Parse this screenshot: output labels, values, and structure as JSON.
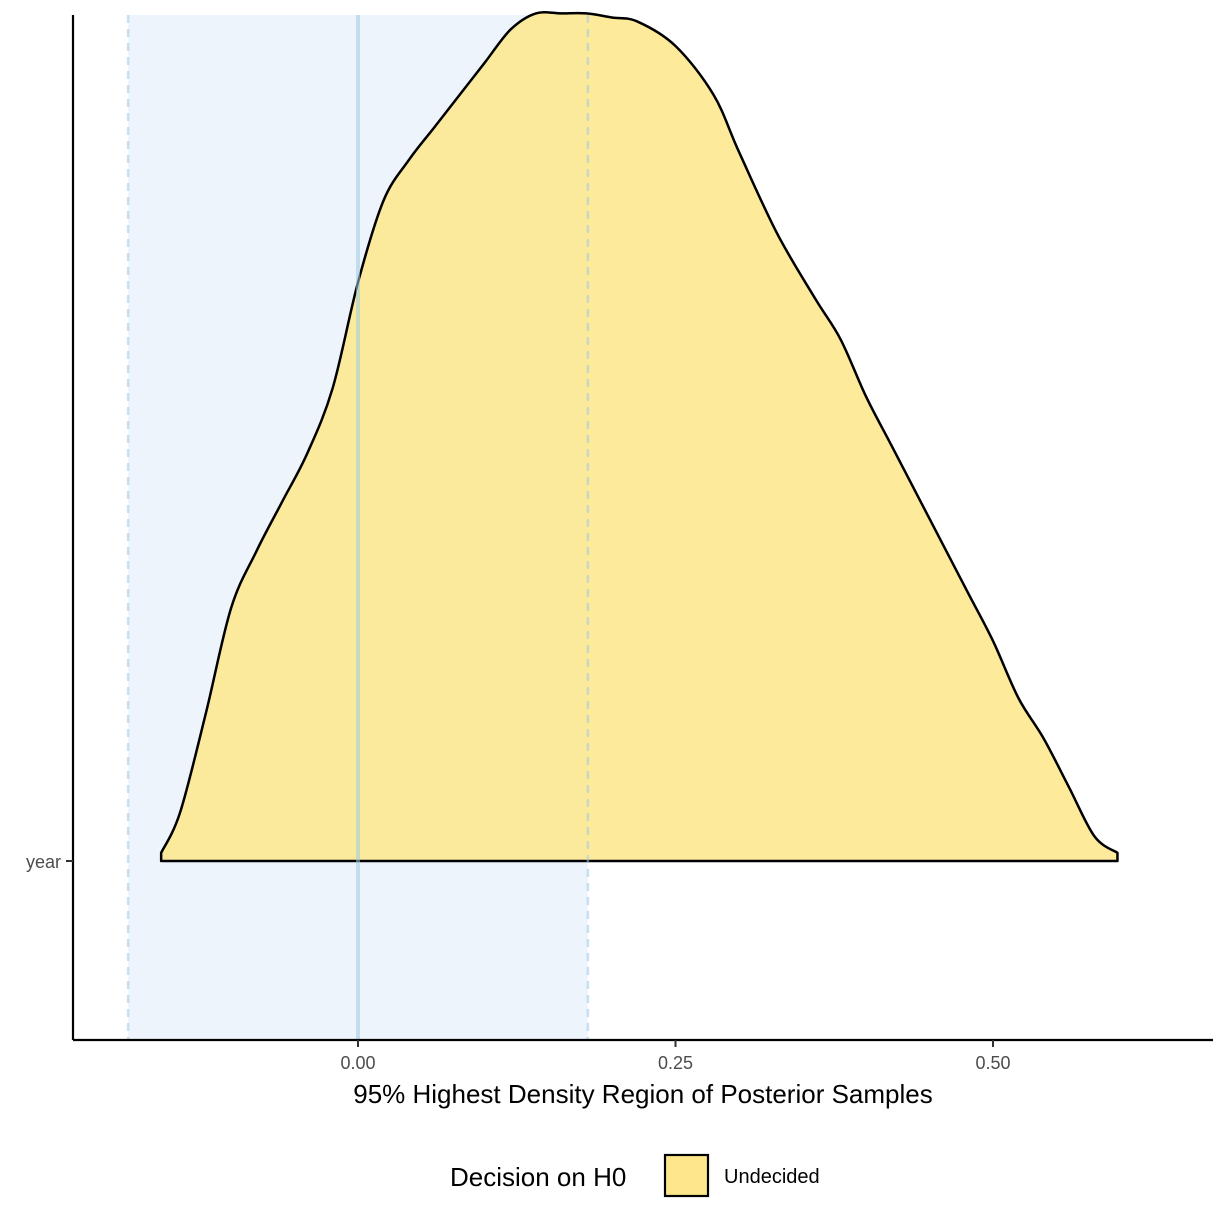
{
  "chart_data": {
    "type": "area",
    "title": "",
    "xlabel": "95% Highest Density Region of Posterior Samples",
    "ylabel": "",
    "xlim": [
      -0.225,
      0.67
    ],
    "x_ticks": [
      {
        "value": 0.0,
        "label": "0.00"
      },
      {
        "value": 0.25,
        "label": "0.25"
      },
      {
        "value": 0.5,
        "label": "0.50"
      }
    ],
    "y_categories": [
      "year"
    ],
    "rope": {
      "low": -0.181,
      "high": 0.181,
      "color": "#deebf7"
    },
    "null_value": 0.0,
    "reference_color": "#9ecae1",
    "density_color": "#fde78a",
    "grid": false,
    "series": [
      {
        "category": "year",
        "x": [
          -0.155,
          -0.14,
          -0.12,
          -0.1,
          -0.08,
          -0.06,
          -0.04,
          -0.02,
          0.0,
          0.02,
          0.04,
          0.06,
          0.08,
          0.1,
          0.12,
          0.14,
          0.16,
          0.18,
          0.2,
          0.22,
          0.25,
          0.28,
          0.3,
          0.33,
          0.36,
          0.38,
          0.4,
          0.42,
          0.45,
          0.48,
          0.5,
          0.52,
          0.54,
          0.56,
          0.58,
          0.598
        ],
        "density": [
          0.01,
          0.06,
          0.18,
          0.31,
          0.38,
          0.44,
          0.5,
          0.58,
          0.71,
          0.81,
          0.86,
          0.9,
          0.94,
          0.98,
          1.02,
          1.04,
          1.04,
          1.04,
          1.035,
          1.03,
          1.0,
          0.94,
          0.87,
          0.77,
          0.69,
          0.64,
          0.57,
          0.51,
          0.42,
          0.33,
          0.27,
          0.2,
          0.15,
          0.09,
          0.03,
          0.01
        ]
      }
    ],
    "legend": {
      "title": "Decision on H0",
      "position": "bottom",
      "entries": [
        {
          "label": "Undecided",
          "color": "#fde78a"
        }
      ]
    }
  }
}
